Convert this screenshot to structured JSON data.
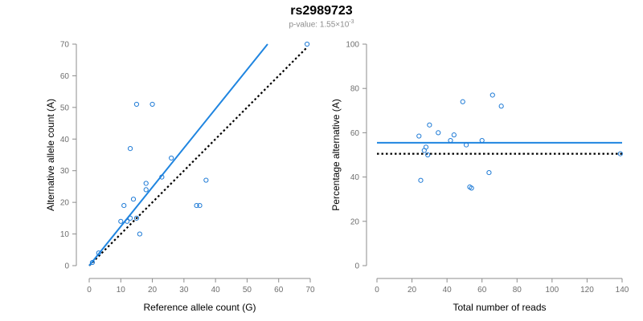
{
  "header": {
    "title": "rs2989723",
    "subtitle_prefix": "p-value: 1.55×10",
    "subtitle_exp": "-3"
  },
  "colors": {
    "points": "#1f7bd6",
    "fit_line": "#1f85e0",
    "reference_line": "#000000",
    "axis": "#8c8c8c"
  },
  "chart_data": [
    {
      "type": "scatter",
      "xlabel": "Reference allele count (G)",
      "ylabel": "Alternative allele count (A)",
      "xlim": [
        0,
        70
      ],
      "ylim": [
        0,
        70
      ],
      "xticks": [
        0,
        10,
        20,
        30,
        40,
        50,
        60,
        70
      ],
      "yticks": [
        0,
        10,
        20,
        30,
        40,
        50,
        60,
        70
      ],
      "points": [
        {
          "x": 1,
          "y": 1
        },
        {
          "x": 3,
          "y": 4
        },
        {
          "x": 10,
          "y": 14
        },
        {
          "x": 11,
          "y": 19
        },
        {
          "x": 12,
          "y": 14
        },
        {
          "x": 13,
          "y": 15
        },
        {
          "x": 13,
          "y": 37
        },
        {
          "x": 14,
          "y": 21
        },
        {
          "x": 15,
          "y": 51
        },
        {
          "x": 15,
          "y": 15
        },
        {
          "x": 16,
          "y": 10
        },
        {
          "x": 18,
          "y": 24
        },
        {
          "x": 18,
          "y": 26
        },
        {
          "x": 20,
          "y": 51
        },
        {
          "x": 23,
          "y": 28
        },
        {
          "x": 26,
          "y": 34
        },
        {
          "x": 34,
          "y": 19
        },
        {
          "x": 35,
          "y": 19
        },
        {
          "x": 37,
          "y": 27
        },
        {
          "x": 69,
          "y": 70
        }
      ],
      "fit_line": {
        "x": [
          0,
          56.5
        ],
        "y": [
          0,
          70
        ]
      },
      "reference_line": {
        "x": [
          0,
          69
        ],
        "y": [
          0,
          69
        ]
      }
    },
    {
      "type": "scatter",
      "xlabel": "Total number of reads",
      "ylabel": "Percentage alternative (A)",
      "xlim": [
        0,
        140
      ],
      "ylim": [
        0,
        100
      ],
      "xticks": [
        0,
        20,
        40,
        60,
        80,
        100,
        120,
        140
      ],
      "yticks": [
        0,
        20,
        40,
        60,
        80,
        100
      ],
      "points": [
        {
          "x": 24,
          "y": 58.5
        },
        {
          "x": 25,
          "y": 38.5
        },
        {
          "x": 27,
          "y": 52
        },
        {
          "x": 28,
          "y": 53.5
        },
        {
          "x": 29,
          "y": 50
        },
        {
          "x": 30,
          "y": 63.5
        },
        {
          "x": 35,
          "y": 60
        },
        {
          "x": 42,
          "y": 56.5
        },
        {
          "x": 44,
          "y": 59
        },
        {
          "x": 49,
          "y": 74
        },
        {
          "x": 51,
          "y": 54.5
        },
        {
          "x": 53,
          "y": 35.5
        },
        {
          "x": 54,
          "y": 35
        },
        {
          "x": 60,
          "y": 56.5
        },
        {
          "x": 64,
          "y": 42
        },
        {
          "x": 66,
          "y": 77
        },
        {
          "x": 71,
          "y": 72
        },
        {
          "x": 139,
          "y": 50.5
        }
      ],
      "fit_line": {
        "x": [
          0,
          140
        ],
        "y": [
          55.5,
          55.5
        ]
      },
      "reference_line": {
        "x": [
          0,
          140
        ],
        "y": [
          50.5,
          50.5
        ]
      }
    }
  ]
}
